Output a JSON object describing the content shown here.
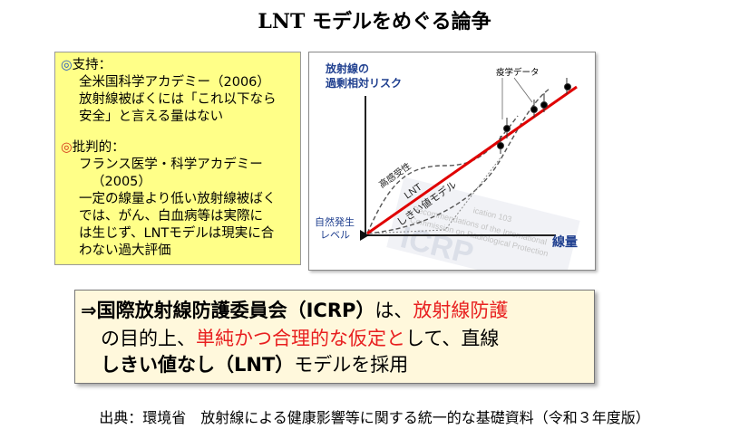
{
  "title": "LNT モデルをめぐる論争",
  "support": {
    "bullet": "◎",
    "heading": "支持：",
    "lines": [
      "全米国科学アカデミー（2006）",
      "放射線被ばくには「これ以下なら",
      "安全」と言える量はない"
    ]
  },
  "critical": {
    "bullet": "◎",
    "heading": "批判的：",
    "lines": [
      "フランス医学・科学アカデミー",
      "（2005）",
      "一定の線量より低い放射線被ばく",
      "では、がん、白血病等は実際に",
      "は生じず、LNTモデルは現実に合",
      "わない過大評価"
    ]
  },
  "chart": {
    "ylabel_line1": "放射線の",
    "ylabel_line2": "過剰相対リスク",
    "xlabel": "線量",
    "origin_line1": "自然発生",
    "origin_line2": "レベル",
    "epi_label": "疫学データ",
    "curve_hyper": "高感受性",
    "curve_lnt": "LNT",
    "curve_threshold": "しきい値モデル",
    "watermark": "ICRP",
    "watermark_text1": "Recommendations of the International",
    "watermark_text2": "Commission on Radiological Protection",
    "watermark_num": "ication 103",
    "colors": {
      "lnt_line": "#e00000",
      "axis": "#222222",
      "label_blue": "#1f3f8f"
    }
  },
  "chart_data": {
    "type": "line",
    "title": "",
    "xlabel": "線量",
    "ylabel": "放射線の過剰相対リスク",
    "series": [
      {
        "name": "LNT",
        "style": "solid red straight line from origin"
      },
      {
        "name": "高感受性",
        "style": "dashed curve above LNT at low dose"
      },
      {
        "name": "しきい値モデル",
        "style": "dashed curve with threshold"
      },
      {
        "name": "疫学データ",
        "style": "black points with error bars at high dose"
      }
    ]
  },
  "conclusion": {
    "arrow": "⇒",
    "part1": "国際放射線防護委員会（ICRP）",
    "part2": "は、",
    "part3": "放射線防護",
    "part4": "の目的上、",
    "part5": "単純かつ合理的な仮定と",
    "part6": "して、直線",
    "part7": "しきい値なし（LNT）",
    "part8": "モデルを採用"
  },
  "source": "出典：環境省　放射線による健康影響等に関する統一的な基礎資料（令和３年度版）"
}
